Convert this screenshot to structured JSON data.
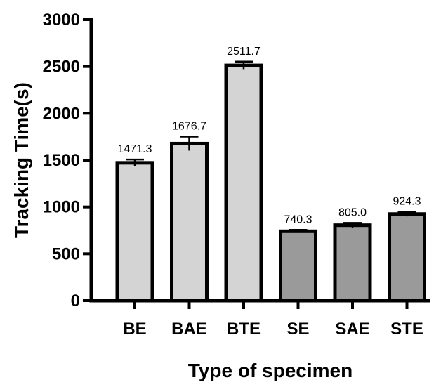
{
  "chart_data": {
    "type": "bar",
    "categories": [
      "BE",
      "BAE",
      "BTE",
      "SE",
      "SAE",
      "STE"
    ],
    "values": [
      1471.3,
      1676.7,
      2511.7,
      740.3,
      805.0,
      924.3
    ],
    "value_labels": [
      "1471.3",
      "1676.7",
      "2511.7",
      "740.3",
      "805.0",
      "924.3"
    ],
    "error": [
      35,
      75,
      40,
      15,
      25,
      25
    ],
    "bar_colors": [
      "#d4d4d4",
      "#d4d4d4",
      "#d4d4d4",
      "#9a9a9a",
      "#9a9a9a",
      "#9a9a9a"
    ],
    "edge_color": "#000000",
    "xlabel": "Type of specimen",
    "ylabel": "Tracking Time(s)",
    "ylim": [
      0,
      3000
    ],
    "yticks": [
      0,
      500,
      1000,
      1500,
      2000,
      2500,
      3000
    ],
    "ytick_labels": [
      "0",
      "500",
      "1000",
      "1500",
      "2000",
      "2500",
      "3000"
    ],
    "grid": false,
    "legend": "none"
  }
}
